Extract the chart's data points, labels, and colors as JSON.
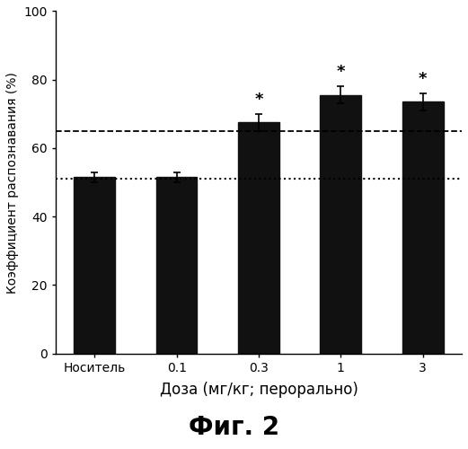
{
  "categories": [
    "Носитель",
    "0.1",
    "0.3",
    "1",
    "3"
  ],
  "values": [
    51.5,
    51.5,
    67.5,
    75.5,
    73.5
  ],
  "errors": [
    1.5,
    1.5,
    2.5,
    2.5,
    2.5
  ],
  "significant": [
    false,
    false,
    true,
    true,
    true
  ],
  "bar_color": "#111111",
  "dashed_line_y": 65.0,
  "dotted_line_y": 51.0,
  "ylabel": "Коэффициент распознавания (%)",
  "xlabel": "Доза (мг/кг; перорально)",
  "title": "Фиг. 2",
  "ylim": [
    0,
    100
  ],
  "yticks": [
    0,
    20,
    40,
    60,
    80,
    100
  ],
  "figsize": [
    5.21,
    5.0
  ],
  "dpi": 100,
  "star_fontsize": 13,
  "ylabel_fontsize": 10,
  "xlabel_fontsize": 12,
  "title_fontsize": 20,
  "tick_fontsize": 10,
  "background_color": "#ffffff",
  "bar_width": 0.5,
  "capsize": 3
}
